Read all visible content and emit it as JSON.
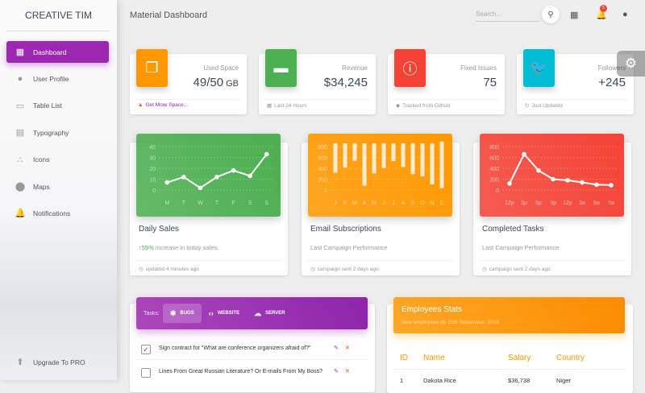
{
  "sidebar": {
    "brand": "CREATIVE TIM",
    "items": [
      {
        "label": "Dashboard",
        "icon": "dashboard-icon",
        "glyph": "▦",
        "active": true
      },
      {
        "label": "User Profile",
        "icon": "person-icon",
        "glyph": "●"
      },
      {
        "label": "Table List",
        "icon": "clipboard-icon",
        "glyph": "▭"
      },
      {
        "label": "Typography",
        "icon": "library-books-icon",
        "glyph": "▤"
      },
      {
        "label": "Icons",
        "icon": "bubble-chart-icon",
        "glyph": "∴"
      },
      {
        "label": "Maps",
        "icon": "location-pin-icon",
        "glyph": "⬤"
      },
      {
        "label": "Notifications",
        "icon": "bell-icon",
        "glyph": "🔔"
      }
    ],
    "upgrade": {
      "label": "Upgrade To PRO",
      "icon": "unarchive-icon",
      "glyph": "⬆"
    }
  },
  "topbar": {
    "title": "Material Dashboard",
    "search_placeholder": "Search...",
    "notification_count": "5"
  },
  "stats": [
    {
      "category": "Used Space",
      "value": "49/50",
      "unit": "GB",
      "footer": "Get More Space...",
      "footer_icon": "warning-icon",
      "icon": "copy-icon",
      "color": "#ff9800"
    },
    {
      "category": "Revenue",
      "value": "$34,245",
      "footer": "Last 24 Hours",
      "footer_icon": "calendar-icon",
      "icon": "store-icon",
      "color": "#4caf50"
    },
    {
      "category": "Fixed Issues",
      "value": "75",
      "footer": "Tracked from Github",
      "footer_icon": "tag-icon",
      "icon": "info-icon",
      "color": "#f44336"
    },
    {
      "category": "Followers",
      "value": "+245",
      "footer": "Just Updated",
      "footer_icon": "update-icon",
      "icon": "twitter-icon",
      "color": "#00bcd4"
    }
  ],
  "charts": [
    {
      "title": "Daily Sales",
      "highlight": "55%",
      "subtitle": " increase in today sales.",
      "footer": "updated 4 minutes ago",
      "color": "#4caf50"
    },
    {
      "title": "Email Subscriptions",
      "subtitle": "Last Campaign Performance",
      "footer": "campaign sent 2 days ago",
      "color": "#ff9800"
    },
    {
      "title": "Completed Tasks",
      "subtitle": "Last Campaign Performance",
      "footer": "campaign sent 2 days ago",
      "color": "#f44336"
    }
  ],
  "chart_data": [
    {
      "type": "line",
      "categories": [
        "M",
        "T",
        "W",
        "T",
        "F",
        "S",
        "S"
      ],
      "values": [
        7,
        12,
        2,
        12,
        18,
        13,
        33
      ],
      "yticks": [
        0,
        10,
        20,
        30,
        40
      ],
      "ylim": [
        0,
        40
      ],
      "grid": true
    },
    {
      "type": "bar",
      "categories": [
        "J",
        "F",
        "M",
        "A",
        "M",
        "J",
        "J",
        "A",
        "S",
        "O",
        "N",
        "D"
      ],
      "values": [
        542,
        443,
        320,
        780,
        553,
        453,
        326,
        434,
        568,
        610,
        756,
        895
      ],
      "yticks": [
        0,
        200,
        400,
        600,
        800
      ],
      "ylim": [
        0,
        900
      ],
      "grid": true
    },
    {
      "type": "line",
      "categories": [
        "12p",
        "3p",
        "6p",
        "9p",
        "12p",
        "3a",
        "6a",
        "9a"
      ],
      "values": [
        120,
        660,
        360,
        200,
        180,
        140,
        100,
        90
      ],
      "yticks": [
        0,
        200,
        400,
        600,
        800
      ],
      "ylim": [
        0,
        800
      ],
      "grid": true
    }
  ],
  "tasks": {
    "label": "Tasks:",
    "tabs": [
      {
        "label": "BUGS",
        "icon": "bug-icon",
        "glyph": "✱"
      },
      {
        "label": "WEBSITE",
        "icon": "code-icon",
        "glyph": "‹›"
      },
      {
        "label": "SERVER",
        "icon": "cloud-icon",
        "glyph": "☁"
      }
    ],
    "items": [
      {
        "text": "Sign contract for \"What are conference organizers afraid of?\"",
        "checked": true
      },
      {
        "text": "Lines From Great Russian Literature? Or E-mails From My Boss?",
        "checked": false
      }
    ]
  },
  "employees": {
    "title": "Employees Stats",
    "subtitle": "New employees on 15th September, 2016",
    "columns": [
      "ID",
      "Name",
      "Salary",
      "Country"
    ],
    "rows": [
      [
        "1",
        "Dakota Rice",
        "$36,738",
        "Niger"
      ]
    ]
  }
}
